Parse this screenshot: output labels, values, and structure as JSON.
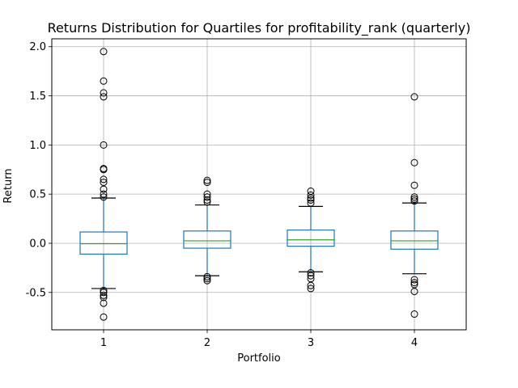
{
  "chart_data": {
    "type": "box",
    "title": "Returns Distribution for Quartiles for profitability_rank (quarterly)",
    "xlabel": "Portfolio",
    "ylabel": "Return",
    "categories": [
      "1",
      "2",
      "3",
      "4"
    ],
    "ylim": [
      -0.88,
      2.08
    ],
    "yticks": [
      "-0.5",
      "0.0",
      "0.5",
      "1.0",
      "1.5",
      "2.0"
    ],
    "grid": true,
    "colors": {
      "box": "#1f77b4",
      "median": "#2ca02c",
      "flier": "#000000",
      "grid": "#b0b0b0"
    },
    "boxes": [
      {
        "category": "1",
        "whisker_low": -0.46,
        "q1": -0.11,
        "median": -0.005,
        "q3": 0.115,
        "whisker_high": 0.46,
        "fliers": [
          1.95,
          1.65,
          1.53,
          1.49,
          1.0,
          0.76,
          0.75,
          0.65,
          0.62,
          0.55,
          0.5,
          0.47,
          -0.48,
          -0.5,
          -0.53,
          -0.55,
          -0.61,
          -0.75
        ]
      },
      {
        "category": "2",
        "whisker_low": -0.33,
        "q1": -0.05,
        "median": 0.025,
        "q3": 0.125,
        "whisker_high": 0.39,
        "fliers": [
          0.64,
          0.62,
          0.5,
          0.47,
          0.44,
          0.42,
          -0.34,
          -0.36,
          -0.38
        ]
      },
      {
        "category": "3",
        "whisker_low": -0.29,
        "q1": -0.03,
        "median": 0.035,
        "q3": 0.135,
        "whisker_high": 0.375,
        "fliers": [
          0.53,
          0.49,
          0.46,
          0.44,
          0.41,
          -0.3,
          -0.33,
          -0.36,
          -0.43,
          -0.46
        ]
      },
      {
        "category": "4",
        "whisker_low": -0.31,
        "q1": -0.06,
        "median": 0.025,
        "q3": 0.125,
        "whisker_high": 0.41,
        "fliers": [
          1.49,
          0.82,
          0.59,
          0.47,
          0.45,
          0.43,
          -0.37,
          -0.4,
          -0.42,
          -0.49,
          -0.72
        ]
      }
    ]
  }
}
